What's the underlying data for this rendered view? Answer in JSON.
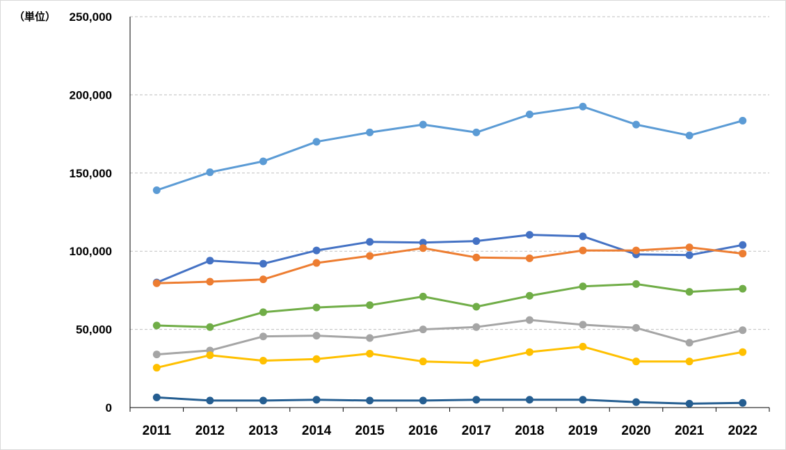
{
  "chart_data": {
    "type": "line",
    "unit_label": "（単位）",
    "categories": [
      "2011",
      "2012",
      "2013",
      "2014",
      "2015",
      "2016",
      "2017",
      "2018",
      "2019",
      "2020",
      "2021",
      "2022"
    ],
    "y_ticks": [
      "0",
      "50,000",
      "100,000",
      "150,000",
      "200,000",
      "250,000"
    ],
    "ylim": [
      0,
      250000
    ],
    "grid": "horizontal dashed",
    "legend": "none",
    "series": [
      {
        "color": "#5b9bd5",
        "values": [
          139000,
          150500,
          157500,
          170000,
          176000,
          181000,
          176000,
          187500,
          192500,
          181000,
          174000,
          183500
        ]
      },
      {
        "color": "#4472c4",
        "values": [
          80000,
          94000,
          92000,
          100500,
          106000,
          105500,
          106500,
          110500,
          109500,
          98000,
          97500,
          104000
        ]
      },
      {
        "color": "#ed7d31",
        "values": [
          79500,
          80500,
          82000,
          92500,
          97000,
          102000,
          96000,
          95500,
          100500,
          100500,
          102500,
          98500
        ]
      },
      {
        "color": "#70ad47",
        "values": [
          52500,
          51500,
          61000,
          64000,
          65500,
          71000,
          64500,
          71500,
          77500,
          79000,
          74000,
          76000
        ]
      },
      {
        "color": "#a5a5a5",
        "values": [
          34000,
          36500,
          45500,
          46000,
          44500,
          50000,
          51500,
          56000,
          53000,
          51000,
          41500,
          49500
        ]
      },
      {
        "color": "#ffc000",
        "values": [
          25500,
          33500,
          30000,
          31000,
          34500,
          29500,
          28500,
          35500,
          39000,
          29500,
          29500,
          35500
        ]
      },
      {
        "color": "#255e91",
        "values": [
          6500,
          4500,
          4500,
          5000,
          4500,
          4500,
          5000,
          5000,
          5000,
          3500,
          2500,
          3000
        ]
      }
    ]
  }
}
